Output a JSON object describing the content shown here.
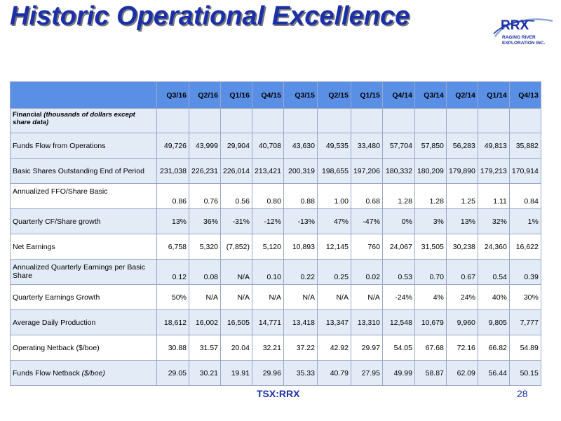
{
  "title": "Historic Operational Excellence",
  "logo": {
    "name": "RRX",
    "subtitle": "RAGING RIVER EXPLORATION INC."
  },
  "table": {
    "periods": [
      "Q3/16",
      "Q2/16",
      "Q1/16",
      "Q4/15",
      "Q3/15",
      "Q2/15",
      "Q1/15",
      "Q4/14",
      "Q3/14",
      "Q2/14",
      "Q1/14",
      "Q4/13"
    ],
    "financial_label": "Financial",
    "financial_note": "(thousands of dollars except share data)",
    "rows": [
      {
        "label": "Funds Flow from Operations",
        "values": [
          "49,726",
          "43,999",
          "29,904",
          "40,708",
          "43,630",
          "49,535",
          "33,480",
          "57,704",
          "57,850",
          "56,283",
          "49,813",
          "35,882"
        ]
      },
      {
        "label": "Basic Shares Outstanding End of Period",
        "values": [
          "231,038",
          "226,231",
          "226,014",
          "213,421",
          "200,319",
          "198,655",
          "197,206",
          "180,332",
          "180,209",
          "179,890",
          "179,213",
          "170,914"
        ]
      },
      {
        "label": "Annualized FFO/Share Basic",
        "values": [
          "0.86",
          "0.76",
          "0.56",
          "0.80",
          "0.88",
          "1.00",
          "0.68",
          "1.28",
          "1.28",
          "1.25",
          "1.11",
          "0.84"
        ]
      },
      {
        "label": "Quarterly CF/Share growth",
        "values": [
          "13%",
          "36%",
          "-31%",
          "-12%",
          "-13%",
          "47%",
          "-47%",
          "0%",
          "3%",
          "13%",
          "32%",
          "1%"
        ]
      },
      {
        "label": "Net Earnings",
        "values": [
          "6,758",
          "5,320",
          "(7,852)",
          "5,120",
          "10,893",
          "12,145",
          "760",
          "24,067",
          "31,505",
          "30,238",
          "24,360",
          "16,622"
        ]
      },
      {
        "label": "Annualized Quarterly Earnings per Basic Share",
        "values": [
          "0.12",
          "0.08",
          "N/A",
          "0.10",
          "0.22",
          "0.25",
          "0.02",
          "0.53",
          "0.70",
          "0.67",
          "0.54",
          "0.39"
        ]
      },
      {
        "label": "Quarterly Earnings Growth",
        "values": [
          "50%",
          "N/A",
          "N/A",
          "N/A",
          "N/A",
          "N/A",
          "N/A",
          "-24%",
          "4%",
          "24%",
          "40%",
          "30%"
        ]
      },
      {
        "label": "Average Daily Production",
        "values": [
          "18,612",
          "16,002",
          "16,505",
          "14,771",
          "13,418",
          "13,347",
          "13,310",
          "12,548",
          "10,679",
          "9,960",
          "9,805",
          "7,777"
        ]
      },
      {
        "label": "Operating Netback ($/boe)",
        "values": [
          "30.88",
          "31.57",
          "20.04",
          "32.21",
          "37.22",
          "42.92",
          "29.97",
          "54.05",
          "67.68",
          "72.16",
          "66.82",
          "54.89"
        ]
      },
      {
        "label": "Funds Flow Netback",
        "label_note": "($/boe)",
        "values": [
          "29.05",
          "30.21",
          "19.91",
          "29.96",
          "35.33",
          "40.79",
          "27.95",
          "49.99",
          "58.87",
          "62.09",
          "56.44",
          "50.15"
        ]
      }
    ]
  },
  "footer": {
    "ticker": "TSX:RRX",
    "page": "28"
  }
}
